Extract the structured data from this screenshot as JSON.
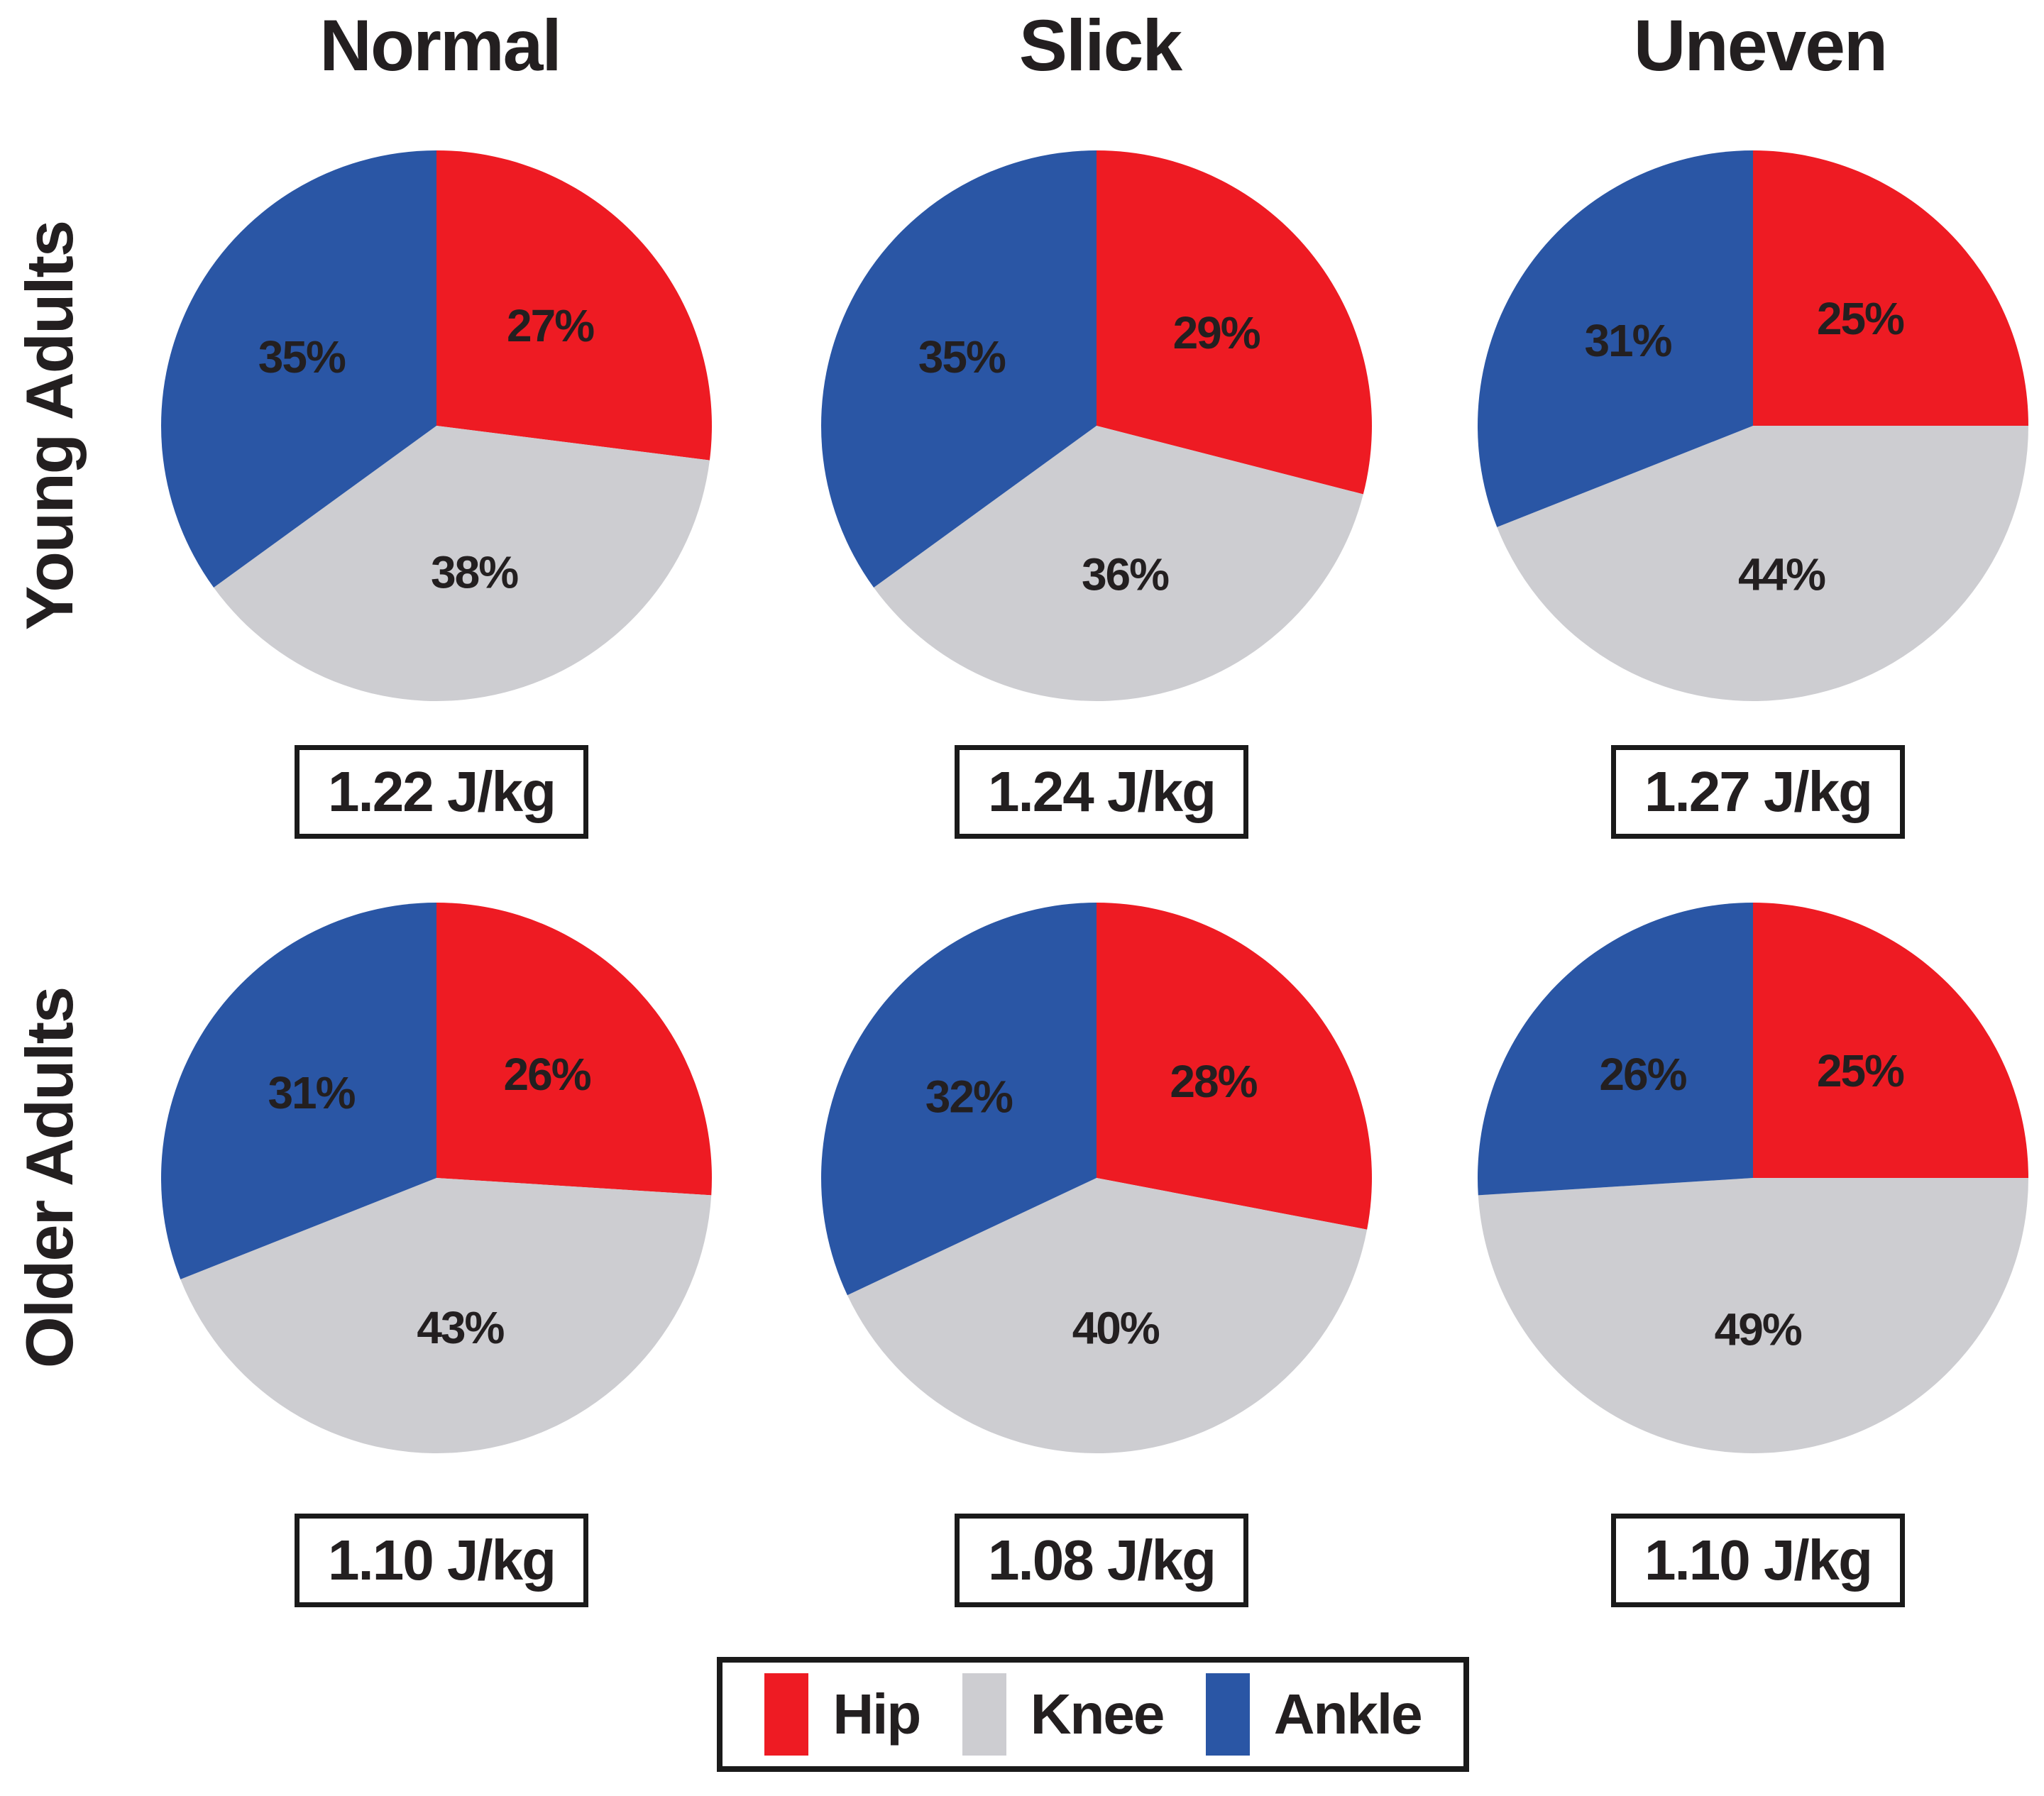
{
  "figure": {
    "background_color": "#ffffff",
    "text_color": "#231f20",
    "unit": "J/kg"
  },
  "columns": [
    "Normal",
    "Slick",
    "Uneven"
  ],
  "rows": [
    "Young Adults",
    "Older Adults"
  ],
  "legend": {
    "items": [
      {
        "label": "Hip",
        "color": "#ee1b23"
      },
      {
        "label": "Knee",
        "color": "#cdcdd1"
      },
      {
        "label": "Ankle",
        "color": "#2a56a5"
      }
    ]
  },
  "chart_data": [
    {
      "type": "pie",
      "row": "Young Adults",
      "column": "Normal",
      "categories": [
        "Hip",
        "Knee",
        "Ankle"
      ],
      "values": [
        27,
        38,
        35
      ],
      "labels": [
        "27%",
        "38%",
        "35%"
      ],
      "colors": [
        "#ee1b23",
        "#cdcdd1",
        "#2a56a5"
      ],
      "start_angle_deg": 0,
      "direction": "clockwise",
      "total_value": 1.22,
      "total_label": "1.22 J/kg"
    },
    {
      "type": "pie",
      "row": "Young Adults",
      "column": "Slick",
      "categories": [
        "Hip",
        "Knee",
        "Ankle"
      ],
      "values": [
        29,
        36,
        35
      ],
      "labels": [
        "29%",
        "36%",
        "35%"
      ],
      "colors": [
        "#ee1b23",
        "#cdcdd1",
        "#2a56a5"
      ],
      "start_angle_deg": 0,
      "direction": "clockwise",
      "total_value": 1.24,
      "total_label": "1.24 J/kg"
    },
    {
      "type": "pie",
      "row": "Young Adults",
      "column": "Uneven",
      "categories": [
        "Hip",
        "Knee",
        "Ankle"
      ],
      "values": [
        25,
        44,
        31
      ],
      "labels": [
        "25%",
        "44%",
        "31%"
      ],
      "colors": [
        "#ee1b23",
        "#cdcdd1",
        "#2a56a5"
      ],
      "start_angle_deg": 0,
      "direction": "clockwise",
      "total_value": 1.27,
      "total_label": "1.27 J/kg"
    },
    {
      "type": "pie",
      "row": "Older Adults",
      "column": "Normal",
      "categories": [
        "Hip",
        "Knee",
        "Ankle"
      ],
      "values": [
        26,
        43,
        31
      ],
      "labels": [
        "26%",
        "43%",
        "31%"
      ],
      "colors": [
        "#ee1b23",
        "#cdcdd1",
        "#2a56a5"
      ],
      "start_angle_deg": 0,
      "direction": "clockwise",
      "total_value": 1.1,
      "total_label": "1.10 J/kg"
    },
    {
      "type": "pie",
      "row": "Older Adults",
      "column": "Slick",
      "categories": [
        "Hip",
        "Knee",
        "Ankle"
      ],
      "values": [
        28,
        40,
        32
      ],
      "labels": [
        "28%",
        "40%",
        "32%"
      ],
      "colors": [
        "#ee1b23",
        "#cdcdd1",
        "#2a56a5"
      ],
      "start_angle_deg": 0,
      "direction": "clockwise",
      "total_value": 1.08,
      "total_label": "1.08 J/kg"
    },
    {
      "type": "pie",
      "row": "Older Adults",
      "column": "Uneven",
      "categories": [
        "Hip",
        "Knee",
        "Ankle"
      ],
      "values": [
        25,
        49,
        26
      ],
      "labels": [
        "25%",
        "49%",
        "26%"
      ],
      "colors": [
        "#ee1b23",
        "#cdcdd1",
        "#2a56a5"
      ],
      "start_angle_deg": 0,
      "direction": "clockwise",
      "total_value": 1.1,
      "total_label": "1.10 J/kg"
    }
  ]
}
